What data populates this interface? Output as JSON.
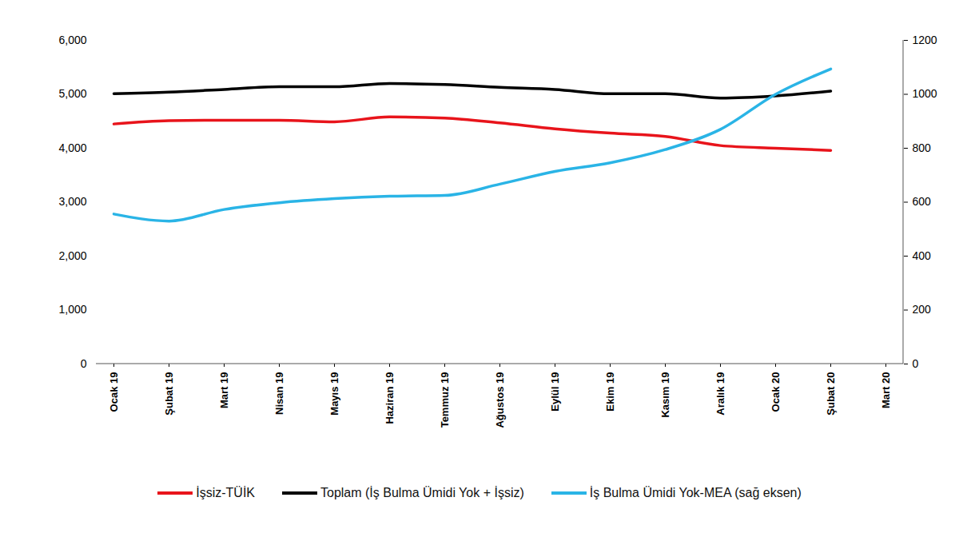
{
  "chart_data": {
    "type": "line",
    "categories": [
      "Ocak 19",
      "Şubat 19",
      "Mart 19",
      "Nisan 19",
      "Mayıs 19",
      "Haziran 19",
      "Temmuz 19",
      "Ağustos 19",
      "Eylül 19",
      "Ekim 19",
      "Kasım 19",
      "Aralık 19",
      "Ocak 20",
      "Şubat 20",
      "Mart 20"
    ],
    "series": [
      {
        "name": "İşsiz-TÜİK",
        "color": "#e8141b",
        "values": [
          4450,
          4510,
          4520,
          4520,
          4490,
          4580,
          4560,
          4470,
          4360,
          4280,
          4220,
          4050,
          4000,
          3960,
          null
        ]
      },
      {
        "name": "Toplam (İş Bulma Ümidi Yok + İşsiz)",
        "color": "#000000",
        "values": [
          5010,
          5040,
          5090,
          5140,
          5140,
          5200,
          5180,
          5130,
          5090,
          5010,
          5010,
          4930,
          4970,
          5060,
          null
        ]
      },
      {
        "name": "İş Bulma Ümidi Yok-MEA (sağ eksen)",
        "color": "#2ab4e6",
        "axis": "y2",
        "values": [
          556,
          530,
          573,
          598,
          613,
          622,
          625,
          667,
          714,
          746,
          795,
          870,
          1000,
          1094,
          null
        ]
      }
    ],
    "ylim": [
      0,
      6000
    ],
    "yticks": [
      0,
      1000,
      2000,
      3000,
      4000,
      5000,
      6000
    ],
    "y2lim": [
      0,
      1200
    ],
    "y2ticks": [
      0,
      200,
      400,
      600,
      800,
      1000,
      1200
    ],
    "legend": "bottom",
    "grid": false
  }
}
